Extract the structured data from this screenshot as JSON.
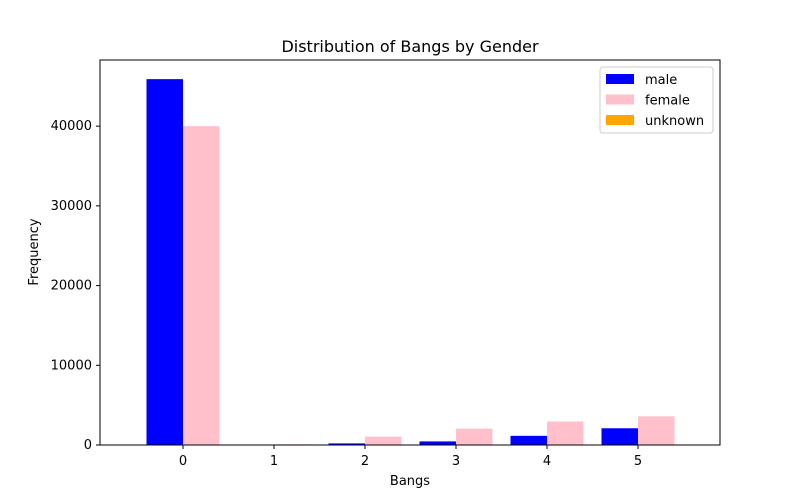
{
  "chart_data": {
    "type": "bar",
    "title": "Distribution of Bangs by Gender",
    "xlabel": "Bangs",
    "ylabel": "Frequency",
    "categories": [
      "0",
      "1",
      "2",
      "3",
      "4",
      "5"
    ],
    "x_ticks": [
      "0",
      "1",
      "2",
      "3",
      "4",
      "5"
    ],
    "y_ticks": [
      "0",
      "10000",
      "20000",
      "30000",
      "40000"
    ],
    "ylim": [
      0,
      48300
    ],
    "series": [
      {
        "name": "male",
        "color": "#0000ff",
        "values": [
          45900,
          0,
          200,
          450,
          1150,
          2100
        ]
      },
      {
        "name": "female",
        "color": "#ffc0cb",
        "values": [
          40000,
          80,
          1050,
          2050,
          2950,
          3600
        ]
      },
      {
        "name": "unknown",
        "color": "#ffa500",
        "values": [
          0,
          0,
          0,
          0,
          0,
          0
        ]
      }
    ],
    "legend_position": "upper right",
    "grid": false
  }
}
